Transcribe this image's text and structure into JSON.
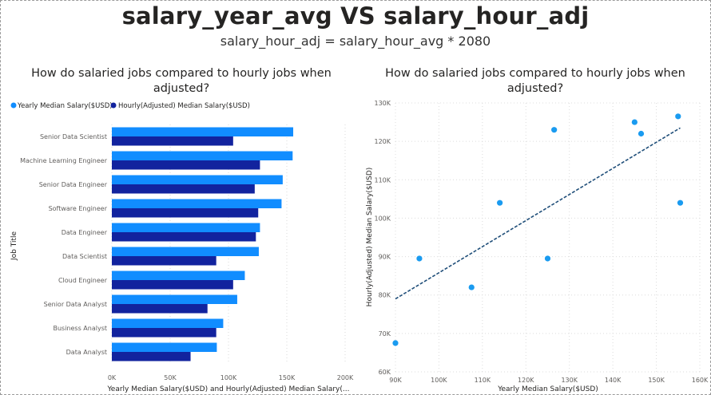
{
  "header": {
    "title": "salary_year_avg VS salary_hour_adj",
    "subtitle": "salary_hour_adj = salary_hour_avg * 2080"
  },
  "colors": {
    "yearly": "#118DFF",
    "hourly": "#12239E",
    "scatter_point": "#1A9BF0",
    "trend": "#1F4E79"
  },
  "chart_data": [
    {
      "type": "bar",
      "orientation": "horizontal",
      "title_lines": [
        "How do salaried jobs compared to hourly jobs when",
        "adjusted?"
      ],
      "xlabel": "Yearly Median Salary($USD) and Hourly(Adjusted) Median Salary(...",
      "ylabel": "Job Title",
      "xlim": [
        0,
        200000
      ],
      "xticks": [
        {
          "v": 0,
          "label": "0K"
        },
        {
          "v": 50000,
          "label": "50K"
        },
        {
          "v": 100000,
          "label": "100K"
        },
        {
          "v": 150000,
          "label": "150K"
        },
        {
          "v": 200000,
          "label": "200K"
        }
      ],
      "grid": true,
      "legend_position": "top-left",
      "categories": [
        "Senior Data Scientist",
        "Machine Learning Engineer",
        "Senior Data Engineer",
        "Software Engineer",
        "Data Engineer",
        "Data Scientist",
        "Cloud Engineer",
        "Senior Data Analyst",
        "Business Analyst",
        "Data Analyst"
      ],
      "series": [
        {
          "name": "Yearly Median Salary($USD)",
          "values": [
            155500,
            155000,
            146500,
            145500,
            127000,
            126000,
            114000,
            107500,
            95500,
            90000
          ]
        },
        {
          "name": "Hourly(Adjusted) Median Salary($USD)",
          "values": [
            104000,
            127000,
            122500,
            125500,
            123500,
            89500,
            104000,
            82000,
            89500,
            67500
          ]
        }
      ]
    },
    {
      "type": "scatter",
      "title_lines": [
        "How do salaried jobs compared to hourly jobs when",
        "adjusted?"
      ],
      "xlabel": "Yearly Median Salary($USD)",
      "ylabel": "Hourly(Adjusted) Median Salary($USD)",
      "xlim": [
        90000,
        160000
      ],
      "ylim": [
        60000,
        130000
      ],
      "xticks": [
        {
          "v": 90000,
          "label": "90K"
        },
        {
          "v": 100000,
          "label": "100K"
        },
        {
          "v": 110000,
          "label": "110K"
        },
        {
          "v": 120000,
          "label": "120K"
        },
        {
          "v": 130000,
          "label": "130K"
        },
        {
          "v": 140000,
          "label": "140K"
        },
        {
          "v": 150000,
          "label": "150K"
        },
        {
          "v": 160000,
          "label": "160K"
        }
      ],
      "yticks": [
        {
          "v": 60000,
          "label": "60K"
        },
        {
          "v": 70000,
          "label": "70K"
        },
        {
          "v": 80000,
          "label": "80K"
        },
        {
          "v": 90000,
          "label": "90K"
        },
        {
          "v": 100000,
          "label": "100K"
        },
        {
          "v": 110000,
          "label": "110K"
        },
        {
          "v": 120000,
          "label": "120K"
        },
        {
          "v": 130000,
          "label": "130K"
        }
      ],
      "grid": true,
      "points": [
        {
          "x": 90000,
          "y": 67500
        },
        {
          "x": 95500,
          "y": 89500
        },
        {
          "x": 107500,
          "y": 82000
        },
        {
          "x": 114000,
          "y": 104000
        },
        {
          "x": 125000,
          "y": 89500
        },
        {
          "x": 126500,
          "y": 123000
        },
        {
          "x": 145000,
          "y": 125000
        },
        {
          "x": 146500,
          "y": 122000
        },
        {
          "x": 155000,
          "y": 126500
        },
        {
          "x": 155500,
          "y": 104000
        }
      ],
      "trendline": {
        "x": [
          90000,
          155500
        ],
        "y": [
          79000,
          123500
        ]
      }
    }
  ]
}
